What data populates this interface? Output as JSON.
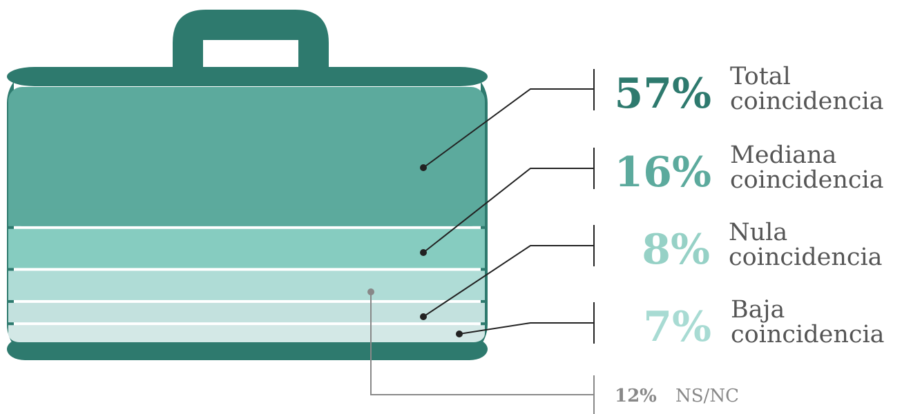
{
  "chart_data": {
    "type": "bar",
    "stacked": true,
    "orientation": "vertical",
    "categories": [
      "Total coincidencia",
      "Mediana coincidencia",
      "NS/NC",
      "Nula coincidencia",
      "Baja coincidencia"
    ],
    "values": [
      57,
      16,
      12,
      8,
      7
    ],
    "unit": "%",
    "segments": [
      {
        "key": "total",
        "value": 57,
        "value_label": "57%",
        "label_line1": "Total",
        "label_line2": "coincidencia",
        "color": "#5caa9d",
        "label_color": "#2e7a6e"
      },
      {
        "key": "mediana",
        "value": 16,
        "value_label": "16%",
        "label_line1": "Mediana",
        "label_line2": "coincidencia",
        "color": "#86ccc0",
        "label_color": "#5caa9d"
      },
      {
        "key": "nsnc",
        "value": 12,
        "value_label": "12%",
        "label_line1": "NS/NC",
        "label_line2": "",
        "color": "#afdcd6",
        "label_color": "#888888"
      },
      {
        "key": "nula",
        "value": 8,
        "value_label": "8%",
        "label_line1": "Nula",
        "label_line2": "coincidencia",
        "color": "#c3e1de",
        "label_color": "#96d1c6"
      },
      {
        "key": "baja",
        "value": 7,
        "value_label": "7%",
        "label_line1": "Baja",
        "label_line2": "coincidencia",
        "color": "#d3e8e6",
        "label_color": "#a8dbd3"
      }
    ]
  },
  "colors": {
    "case": "#2e7a6e",
    "leader": "#222222",
    "leader_nsnc": "#888888",
    "label_text": "#555555"
  },
  "icons": {
    "briefcase": "briefcase-icon"
  }
}
